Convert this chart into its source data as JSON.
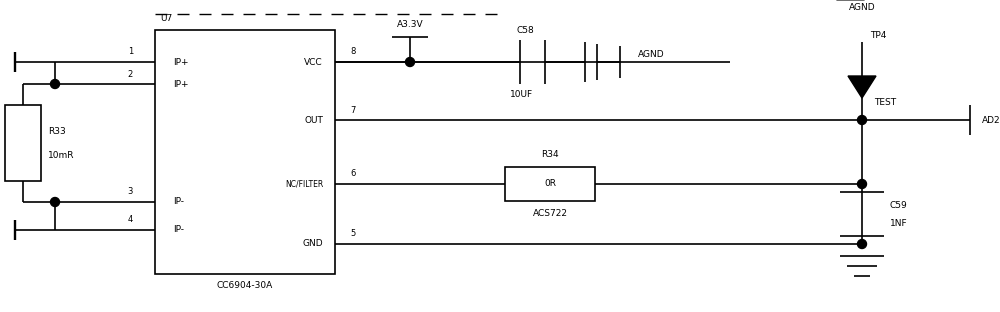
{
  "bg": "#ffffff",
  "lc": "#000000",
  "lw": 1.2,
  "fw": 10.0,
  "fh": 3.12,
  "dpi": 100,
  "xlim": [
    0,
    10
  ],
  "ylim": [
    0,
    3.12
  ]
}
